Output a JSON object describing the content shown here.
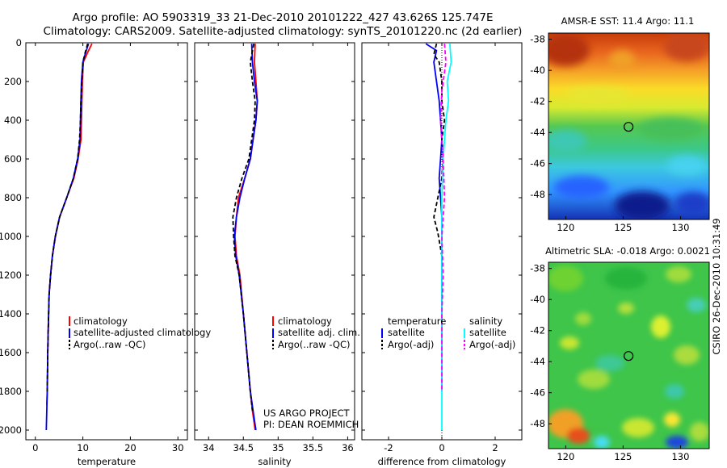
{
  "header": {
    "line1": "Argo profile: AO 5903319_33 21-Dec-2010 20101222_427 43.626S 125.747E",
    "line2": "Climatology: CARS2009. Satellite-adjusted climatology: synTS_20101220.nc (2d earlier)"
  },
  "colors": {
    "climatology": "#ff0000",
    "satellite": "#0000ff",
    "argo": "#000000",
    "sal_satellite": "#00ffff",
    "sal_argo": "#ff00ff"
  },
  "chart_data": [
    {
      "id": "temperature",
      "type": "line",
      "xlabel": "temperature",
      "xlim": [
        -2,
        32
      ],
      "ylim": [
        2050,
        0
      ],
      "xticks": [
        0,
        10,
        20,
        30
      ],
      "yticks": [
        0,
        200,
        400,
        600,
        800,
        1000,
        1200,
        1400,
        1600,
        1800,
        2000
      ],
      "legend": [
        "climatology",
        "satellite-adjusted climatology",
        "Argo(..raw -QC)"
      ],
      "series": [
        {
          "name": "climatology",
          "color": "#ff0000",
          "dash": "",
          "x": [
            11.9,
            11.0,
            10.1,
            9.9,
            9.8,
            9.7,
            9.6,
            9.0,
            8.1,
            6.6,
            5.1,
            4.2,
            3.6,
            3.2,
            2.9,
            2.8,
            2.7,
            2.6,
            2.5,
            2.4
          ],
          "y": [
            5,
            50,
            100,
            200,
            300,
            400,
            500,
            600,
            700,
            800,
            900,
            1000,
            1100,
            1200,
            1300,
            1400,
            1500,
            1600,
            1800,
            1870
          ]
        },
        {
          "name": "satellite-adjusted climatology",
          "color": "#0000ff",
          "dash": "",
          "x": [
            11.2,
            10.6,
            10.0,
            9.7,
            9.6,
            9.5,
            9.4,
            8.9,
            8.0,
            6.6,
            5.1,
            4.2,
            3.6,
            3.2,
            2.9,
            2.8,
            2.7,
            2.6,
            2.5,
            2.3
          ],
          "y": [
            5,
            50,
            100,
            200,
            300,
            400,
            500,
            600,
            700,
            800,
            900,
            1000,
            1100,
            1200,
            1300,
            1400,
            1500,
            1600,
            1800,
            2000
          ]
        },
        {
          "name": "Argo(..raw -QC)",
          "color": "#000000",
          "dash": "5,3",
          "x": [
            11.0,
            10.5,
            10.0,
            9.8,
            9.6,
            9.5,
            9.3,
            8.9,
            8.0,
            6.6,
            5.1,
            4.2,
            3.6,
            3.2,
            2.9,
            2.8,
            2.7,
            2.6,
            2.5
          ],
          "y": [
            5,
            50,
            100,
            200,
            300,
            400,
            500,
            600,
            700,
            800,
            900,
            1000,
            1100,
            1200,
            1300,
            1400,
            1500,
            1600,
            1800
          ]
        }
      ]
    },
    {
      "id": "salinity",
      "type": "line",
      "xlabel": "salinity",
      "xlim": [
        33.8,
        36.1
      ],
      "ylim": [
        2050,
        0
      ],
      "xticks": [
        34,
        34.5,
        35,
        35.5,
        36
      ],
      "xticklabels": [
        "34",
        "34.5",
        "35",
        "35.5",
        "36"
      ],
      "legend": [
        "climatology",
        "satellite adj. clim.",
        "Argo(..raw -QC)"
      ],
      "series": [
        {
          "name": "climatology",
          "color": "#ff0000",
          "dash": "",
          "x": [
            34.67,
            34.66,
            34.68,
            34.7,
            34.68,
            34.64,
            34.6,
            34.52,
            34.43,
            34.4,
            34.38,
            34.4,
            34.45,
            34.5,
            34.55,
            34.6,
            34.63,
            34.67
          ],
          "y": [
            5,
            100,
            200,
            300,
            400,
            500,
            600,
            700,
            800,
            900,
            1000,
            1100,
            1200,
            1400,
            1600,
            1800,
            1900,
            2000
          ]
        },
        {
          "name": "satellite adj. clim.",
          "color": "#0000ff",
          "dash": "",
          "x": [
            34.62,
            34.63,
            34.66,
            34.7,
            34.68,
            34.64,
            34.6,
            34.52,
            34.45,
            34.4,
            34.37,
            34.39,
            34.44,
            34.5,
            34.55,
            34.6,
            34.64,
            34.68
          ],
          "y": [
            5,
            100,
            200,
            300,
            400,
            500,
            600,
            700,
            800,
            900,
            1000,
            1100,
            1200,
            1400,
            1600,
            1800,
            1900,
            2000
          ]
        },
        {
          "name": "Argo(..raw -QC)",
          "color": "#000000",
          "dash": "5,3",
          "x": [
            34.65,
            34.6,
            34.63,
            34.67,
            34.66,
            34.62,
            34.58,
            34.48,
            34.4,
            34.35,
            34.36,
            34.38,
            34.44,
            34.5,
            34.55,
            34.6,
            34.63
          ],
          "y": [
            5,
            100,
            200,
            300,
            400,
            500,
            600,
            700,
            800,
            900,
            1000,
            1100,
            1200,
            1400,
            1600,
            1800,
            1900
          ]
        }
      ]
    },
    {
      "id": "difference",
      "type": "line",
      "xlabel": "difference from climatology",
      "xlim": [
        -3,
        3
      ],
      "ylim": [
        2050,
        0
      ],
      "xticks": [
        -2,
        0,
        2
      ],
      "legend_temperature_title": "temperature",
      "legend_salinity_title": "salinity",
      "legend": [
        "satellite",
        "Argo(-adj)",
        "satellite",
        "Argo(-adj)"
      ],
      "series": [
        {
          "name": "temperature satellite",
          "color": "#0000ff",
          "dash": "",
          "x": [
            -0.6,
            -0.2,
            -0.3,
            -0.2,
            -0.1,
            -0.05,
            0.0,
            -0.05,
            -0.1,
            -0.05,
            0.0,
            0.0,
            0.0,
            0.0,
            0.0,
            0.0
          ],
          "y": [
            5,
            40,
            100,
            200,
            300,
            400,
            500,
            600,
            700,
            800,
            900,
            1000,
            1100,
            1200,
            1400,
            1800
          ]
        },
        {
          "name": "temperature Argo(-adj)",
          "color": "#000000",
          "dash": "5,3",
          "x": [
            -0.2,
            -0.3,
            -0.1,
            0.0,
            0.0,
            0.1,
            0.0,
            0.05,
            0.0,
            -0.3,
            -0.15,
            0.0,
            0.0,
            0.0
          ],
          "y": [
            5,
            60,
            100,
            200,
            300,
            400,
            500,
            580,
            700,
            900,
            980,
            1100,
            1300,
            1600
          ]
        },
        {
          "name": "salinity satellite",
          "color": "#00ffff",
          "dash": "",
          "x": [
            0.3,
            0.35,
            0.2,
            0.25,
            0.15,
            0.1,
            0.05,
            0.0,
            0.0,
            0.0,
            0.0,
            0.0,
            0.0
          ],
          "y": [
            5,
            100,
            200,
            300,
            400,
            500,
            600,
            800,
            1000,
            1200,
            1500,
            1800,
            2000
          ]
        },
        {
          "name": "salinity Argo(-adj)",
          "color": "#ff00ff",
          "dash": "5,3",
          "x": [
            0.1,
            0.15,
            0.0,
            -0.05,
            0.05,
            0.1,
            0.0,
            0.05,
            0.0,
            0.0,
            0.0
          ],
          "y": [
            5,
            100,
            250,
            400,
            600,
            800,
            1000,
            1200,
            1400,
            1600,
            1800
          ]
        }
      ]
    },
    {
      "id": "sst_map",
      "type": "heatmap",
      "title": "AMSR-E SST: 11.4  Argo: 11.1",
      "xlim": [
        118.5,
        132.5
      ],
      "ylim": [
        -49.6,
        -37.6
      ],
      "xticks": [
        120,
        125,
        130
      ],
      "yticks": [
        -38,
        -40,
        -42,
        -44,
        -46,
        -48
      ],
      "marker": {
        "lon": 125.747,
        "lat": -43.626
      }
    },
    {
      "id": "sla_map",
      "type": "heatmap",
      "title": "Altimetric SLA: -0.018  Argo: 0.0021",
      "xlim": [
        118.5,
        132.5
      ],
      "ylim": [
        -49.6,
        -37.6
      ],
      "xticks": [
        120,
        125,
        130
      ],
      "yticks": [
        -38,
        -40,
        -42,
        -44,
        -46,
        -48
      ],
      "marker": {
        "lon": 125.747,
        "lat": -43.626
      }
    }
  ],
  "annotations": {
    "project_line1": "US ARGO PROJECT",
    "project_line2": "PI: DEAN ROEMMICH",
    "credit": "CSIRO 26-Dec-2010 10:31:49"
  }
}
